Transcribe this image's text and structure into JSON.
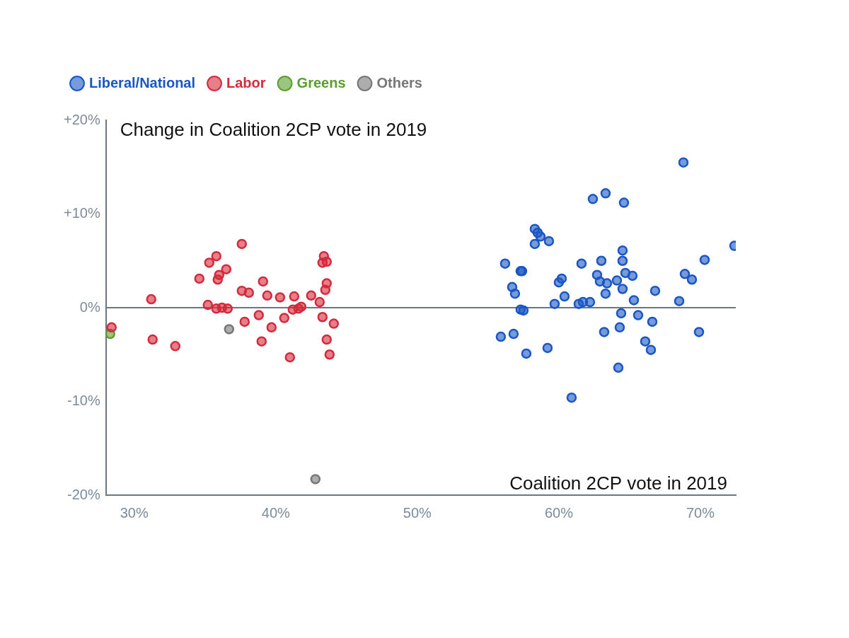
{
  "chart_data": {
    "type": "scatter",
    "x_label": "Coalition 2CP vote in 2019",
    "y_label": "Change in Coalition 2CP vote in 2019",
    "xlim": [
      28,
      72.5
    ],
    "xticks": [
      {
        "value": 30,
        "label": "30%"
      },
      {
        "value": 40,
        "label": "40%"
      },
      {
        "value": 50,
        "label": "50%"
      },
      {
        "value": 60,
        "label": "60%"
      },
      {
        "value": 70,
        "label": "70%"
      }
    ],
    "ylim": [
      -20,
      20
    ],
    "yticks": [
      {
        "value": -20,
        "label": "-20%"
      },
      {
        "value": -10,
        "label": "-10%"
      },
      {
        "value": 0,
        "label": "0%"
      },
      {
        "value": 10,
        "label": "+10%"
      },
      {
        "value": 20,
        "label": "+20%"
      }
    ],
    "grid": false,
    "legend": "top-left",
    "series": [
      {
        "name": "Liberal/National",
        "color": "#1a56c4",
        "marker": "circle",
        "x": [
          55.9,
          56.2,
          56.7,
          56.9,
          56.8,
          57.3,
          57.4,
          57.3,
          57.5,
          57.7,
          58.3,
          58.5,
          58.7,
          58.3,
          59.3,
          59.2,
          59.7,
          60.0,
          60.2,
          60.4,
          60.9,
          61.4,
          61.6,
          61.7,
          62.2,
          62.4,
          62.7,
          62.9,
          63.0,
          63.2,
          63.3,
          63.4,
          63.3,
          64.1,
          64.2,
          64.3,
          64.4,
          64.5,
          64.6,
          64.5,
          64.5,
          64.7,
          65.2,
          65.3,
          65.6,
          66.1,
          66.5,
          66.6,
          66.8,
          68.5,
          68.8,
          68.9,
          69.4,
          69.9,
          70.3,
          72.4
        ],
        "values": [
          -3.1,
          4.7,
          2.2,
          1.5,
          -2.8,
          3.9,
          3.9,
          -0.2,
          -0.3,
          -4.9,
          8.4,
          8.0,
          7.6,
          6.8,
          7.1,
          -4.3,
          0.4,
          2.7,
          3.1,
          1.2,
          -9.6,
          0.4,
          4.7,
          0.6,
          0.6,
          11.6,
          3.5,
          2.8,
          5.0,
          -2.6,
          12.2,
          2.6,
          1.5,
          2.9,
          -6.4,
          -2.1,
          -0.6,
          6.1,
          11.2,
          5.0,
          2.0,
          3.7,
          3.4,
          0.8,
          -0.8,
          -3.6,
          -4.5,
          -1.5,
          1.8,
          0.7,
          15.5,
          3.6,
          3.0,
          -2.6,
          5.1,
          6.6
        ]
      },
      {
        "name": "Labor",
        "color": "#d42a3c",
        "marker": "circle",
        "x": [
          28.4,
          31.2,
          31.3,
          32.9,
          34.6,
          35.2,
          35.3,
          35.8,
          35.9,
          36.0,
          35.8,
          36.2,
          36.5,
          36.6,
          37.6,
          37.6,
          37.8,
          38.1,
          38.8,
          39.0,
          39.1,
          39.4,
          39.7,
          40.3,
          40.6,
          41.0,
          41.2,
          41.3,
          41.6,
          41.8,
          42.5,
          43.1,
          43.3,
          43.4,
          43.3,
          43.6,
          43.5,
          43.6,
          43.6,
          43.8,
          44.1
        ],
        "values": [
          -2.1,
          0.9,
          -3.4,
          -4.1,
          3.1,
          0.3,
          4.8,
          5.5,
          3.0,
          3.5,
          -0.1,
          0.0,
          4.1,
          -0.1,
          6.8,
          1.8,
          -1.5,
          1.6,
          -0.8,
          -3.6,
          2.8,
          1.3,
          -2.1,
          1.1,
          -1.1,
          -5.3,
          -0.2,
          1.2,
          -0.1,
          0.1,
          1.3,
          0.6,
          -1.0,
          5.5,
          4.8,
          4.9,
          1.9,
          2.6,
          -3.4,
          -5.0,
          -1.7
        ]
      },
      {
        "name": "Greens",
        "color": "#5a9e2c",
        "marker": "circle",
        "x": [
          28.3
        ],
        "values": [
          -2.8
        ]
      },
      {
        "name": "Others",
        "color": "#777777",
        "marker": "circle",
        "x": [
          36.7,
          42.8
        ],
        "values": [
          -2.3,
          -18.3
        ]
      }
    ]
  }
}
